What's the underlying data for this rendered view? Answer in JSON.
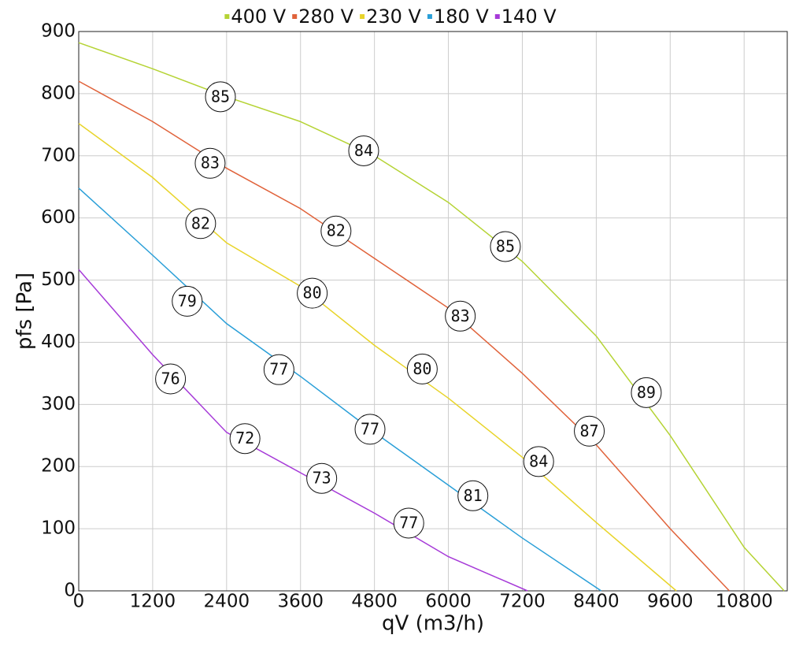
{
  "chart_data": {
    "type": "line",
    "x_label": "qV (m3/h)",
    "y_label": "pfs [Pa]",
    "xlim": [
      0,
      11500
    ],
    "ylim": [
      0,
      900
    ],
    "xticks": [
      0,
      1200,
      2400,
      3600,
      4800,
      6000,
      7200,
      8400,
      9600,
      10800
    ],
    "yticks": [
      0,
      100,
      200,
      300,
      400,
      500,
      600,
      700,
      800,
      900
    ],
    "grid": true,
    "legend": "top",
    "series": [
      {
        "name": "400 V",
        "color": "#b5d334",
        "x": [
          0,
          1200,
          2400,
          3600,
          4800,
          6000,
          7200,
          8400,
          9600,
          10800,
          11450
        ],
        "values": [
          882,
          840,
          795,
          755,
          700,
          625,
          530,
          410,
          250,
          70,
          0
        ]
      },
      {
        "name": "280 V",
        "color": "#e0623a",
        "x": [
          0,
          1200,
          2400,
          3600,
          4800,
          6000,
          7200,
          8400,
          9600,
          10560
        ],
        "values": [
          820,
          755,
          680,
          615,
          535,
          455,
          350,
          235,
          100,
          0
        ]
      },
      {
        "name": "230 V",
        "color": "#e8d42a",
        "x": [
          0,
          1200,
          2400,
          3600,
          4800,
          6000,
          7200,
          8400,
          9700
        ],
        "values": [
          752,
          665,
          560,
          490,
          395,
          310,
          215,
          110,
          0
        ]
      },
      {
        "name": "180 V",
        "color": "#2a9fd8",
        "x": [
          0,
          1200,
          2400,
          3600,
          4800,
          6000,
          7200,
          8480
        ],
        "values": [
          648,
          540,
          430,
          345,
          255,
          170,
          85,
          0
        ]
      },
      {
        "name": "140 V",
        "color": "#a63ad8",
        "x": [
          0,
          1200,
          2400,
          3600,
          4800,
          6000,
          7285
        ],
        "values": [
          517,
          380,
          255,
          190,
          125,
          55,
          0
        ]
      }
    ],
    "annotations": [
      {
        "text": "85",
        "x": 2300,
        "y": 795
      },
      {
        "text": "84",
        "x": 4625,
        "y": 708
      },
      {
        "text": "85",
        "x": 6925,
        "y": 554
      },
      {
        "text": "89",
        "x": 9212,
        "y": 319
      },
      {
        "text": "83",
        "x": 2133,
        "y": 688
      },
      {
        "text": "82",
        "x": 4176,
        "y": 579
      },
      {
        "text": "83",
        "x": 6193,
        "y": 442
      },
      {
        "text": "87",
        "x": 8287,
        "y": 257
      },
      {
        "text": "82",
        "x": 1979,
        "y": 591
      },
      {
        "text": "80",
        "x": 3790,
        "y": 479
      },
      {
        "text": "80",
        "x": 5576,
        "y": 357
      },
      {
        "text": "84",
        "x": 7465,
        "y": 208
      },
      {
        "text": "79",
        "x": 1760,
        "y": 466
      },
      {
        "text": "77",
        "x": 3250,
        "y": 356
      },
      {
        "text": "77",
        "x": 4728,
        "y": 260
      },
      {
        "text": "81",
        "x": 6398,
        "y": 153
      },
      {
        "text": "76",
        "x": 1490,
        "y": 341
      },
      {
        "text": "72",
        "x": 2698,
        "y": 245
      },
      {
        "text": "73",
        "x": 3944,
        "y": 181
      },
      {
        "text": "77",
        "x": 5357,
        "y": 109
      }
    ]
  }
}
